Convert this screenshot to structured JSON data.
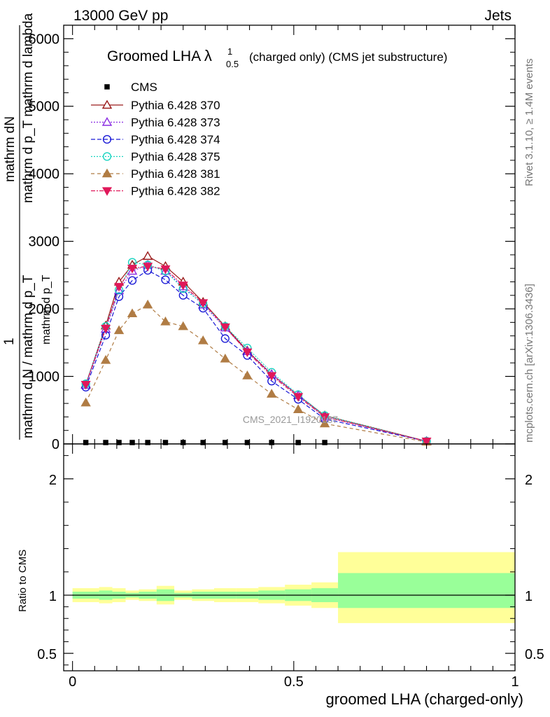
{
  "header": {
    "left": "13000 GeV pp",
    "right": "Jets"
  },
  "side_text": {
    "rivet": "Rivet 3.1.10, ≥ 1.4M events",
    "mcplots": "mcplots.cern.ch [arXiv:1306.3436]"
  },
  "watermark": "CMS_2021_I1920187",
  "colors": {
    "cms": "#000000",
    "p370": "#9b1b1b",
    "p373": "#8a2be2",
    "p374": "#1a1ad6",
    "p375": "#17d4c0",
    "p381": "#b07c44",
    "p382": "#e0185a",
    "band_outer": "#ffff99",
    "band_inner": "#99ff99"
  },
  "chart_data": [
    {
      "type": "line",
      "title_main": "Groomed LHA",
      "title_symbol": "λ",
      "title_sup": "1",
      "title_sub": "0.5",
      "title_rest": "(charged only) (CMS jet substructure)",
      "ylabel_top": "mathrm dN",
      "ylabel_mid": "mathrm d p_T mathrm d lambda",
      "ylabel_one": "1",
      "ylabel_den": "mathrm d N / mathrm d p_T",
      "ylabel_den2": "mathrm d p_T",
      "ylabel_den3": "mathrm d p_T mathrm d lambda",
      "ylim": [
        0,
        6200
      ],
      "xlim": [
        -0.02,
        1.0
      ],
      "yticks": [
        0,
        1000,
        2000,
        3000,
        4000,
        5000,
        6000
      ],
      "ytick_labels": [
        "0",
        "1000",
        "2000",
        "3000",
        "4000",
        "5000",
        "6000"
      ],
      "legend_position": "top-left",
      "cms": {
        "name": "CMS",
        "x": [
          0.03,
          0.075,
          0.105,
          0.135,
          0.17,
          0.21,
          0.25,
          0.295,
          0.345,
          0.395,
          0.45,
          0.51,
          0.57
        ],
        "y": [
          0,
          0,
          0,
          0,
          0,
          0,
          0,
          0,
          0,
          0,
          0,
          0,
          0
        ]
      },
      "series": [
        {
          "name": "Pythia 6.428 370",
          "key": "p370",
          "marker": "triangle-open",
          "dash": "",
          "x": [
            0.03,
            0.075,
            0.105,
            0.135,
            0.17,
            0.21,
            0.25,
            0.295,
            0.345,
            0.395,
            0.45,
            0.51,
            0.57,
            0.8
          ],
          "y": [
            880,
            1750,
            2400,
            2650,
            2780,
            2630,
            2400,
            2100,
            1740,
            1380,
            1030,
            720,
            420,
            40
          ]
        },
        {
          "name": "Pythia 6.428 373",
          "key": "p373",
          "marker": "triangle-open",
          "dash": "2,2",
          "x": [
            0.03,
            0.075,
            0.105,
            0.135,
            0.17,
            0.21,
            0.25,
            0.295,
            0.345,
            0.395,
            0.45,
            0.51,
            0.57,
            0.8
          ],
          "y": [
            870,
            1700,
            2270,
            2560,
            2650,
            2560,
            2330,
            2060,
            1720,
            1370,
            1030,
            720,
            400,
            40
          ]
        },
        {
          "name": "Pythia 6.428 374",
          "key": "p374",
          "marker": "circle-open",
          "dash": "6,3",
          "x": [
            0.03,
            0.075,
            0.105,
            0.135,
            0.17,
            0.21,
            0.25,
            0.295,
            0.345,
            0.395,
            0.45,
            0.51,
            0.57,
            0.8
          ],
          "y": [
            840,
            1610,
            2180,
            2420,
            2570,
            2430,
            2200,
            2010,
            1560,
            1310,
            930,
            660,
            370,
            40
          ]
        },
        {
          "name": "Pythia 6.428 375",
          "key": "p375",
          "marker": "circle-open",
          "dash": "2,2",
          "x": [
            0.03,
            0.075,
            0.105,
            0.135,
            0.17,
            0.21,
            0.25,
            0.295,
            0.345,
            0.395,
            0.45,
            0.51,
            0.57,
            0.8
          ],
          "y": [
            890,
            1740,
            2280,
            2690,
            2650,
            2560,
            2300,
            2080,
            1740,
            1420,
            1060,
            730,
            420,
            40
          ]
        },
        {
          "name": "Pythia 6.428 381",
          "key": "p381",
          "marker": "triangle-filled",
          "dash": "5,4",
          "x": [
            0.03,
            0.075,
            0.105,
            0.135,
            0.17,
            0.21,
            0.25,
            0.295,
            0.345,
            0.395,
            0.45,
            0.51,
            0.57,
            0.8
          ],
          "y": [
            610,
            1240,
            1680,
            1930,
            2060,
            1810,
            1740,
            1530,
            1260,
            1010,
            740,
            510,
            300,
            30
          ]
        },
        {
          "name": "Pythia 6.428 382",
          "key": "p382",
          "marker": "triangle-down-filled",
          "dash": "6,2,2,2",
          "x": [
            0.03,
            0.075,
            0.105,
            0.135,
            0.17,
            0.21,
            0.25,
            0.295,
            0.345,
            0.395,
            0.45,
            0.51,
            0.57,
            0.8
          ],
          "y": [
            880,
            1710,
            2330,
            2600,
            2630,
            2590,
            2350,
            2090,
            1730,
            1360,
            1010,
            700,
            400,
            40
          ]
        }
      ]
    },
    {
      "type": "area",
      "ylabel": "Ratio to CMS",
      "xlabel": "groomed LHA (charged-only)",
      "ylim": [
        0.35,
        2.3
      ],
      "xlim": [
        -0.02,
        1.0
      ],
      "yticks": [
        0.5,
        1,
        2
      ],
      "ytick_labels": [
        "0.5",
        "1",
        "2"
      ],
      "xticks": [
        0,
        0.5,
        1
      ],
      "xtick_labels": [
        "0",
        "0.5",
        "1"
      ],
      "bins": [
        {
          "x0": 0.0,
          "x1": 0.06,
          "inner": [
            0.97,
            1.03
          ],
          "outer": [
            0.94,
            1.06
          ]
        },
        {
          "x0": 0.06,
          "x1": 0.09,
          "inner": [
            0.96,
            1.04
          ],
          "outer": [
            0.93,
            1.07
          ]
        },
        {
          "x0": 0.09,
          "x1": 0.12,
          "inner": [
            0.97,
            1.03
          ],
          "outer": [
            0.94,
            1.06
          ]
        },
        {
          "x0": 0.12,
          "x1": 0.15,
          "inner": [
            0.98,
            1.02
          ],
          "outer": [
            0.96,
            1.04
          ]
        },
        {
          "x0": 0.15,
          "x1": 0.19,
          "inner": [
            0.97,
            1.03
          ],
          "outer": [
            0.95,
            1.05
          ]
        },
        {
          "x0": 0.19,
          "x1": 0.23,
          "inner": [
            0.95,
            1.05
          ],
          "outer": [
            0.92,
            1.08
          ]
        },
        {
          "x0": 0.23,
          "x1": 0.27,
          "inner": [
            0.98,
            1.02
          ],
          "outer": [
            0.96,
            1.04
          ]
        },
        {
          "x0": 0.27,
          "x1": 0.32,
          "inner": [
            0.97,
            1.03
          ],
          "outer": [
            0.95,
            1.05
          ]
        },
        {
          "x0": 0.32,
          "x1": 0.37,
          "inner": [
            0.97,
            1.03
          ],
          "outer": [
            0.94,
            1.06
          ]
        },
        {
          "x0": 0.37,
          "x1": 0.42,
          "inner": [
            0.97,
            1.03
          ],
          "outer": [
            0.94,
            1.06
          ]
        },
        {
          "x0": 0.42,
          "x1": 0.48,
          "inner": [
            0.96,
            1.04
          ],
          "outer": [
            0.93,
            1.07
          ]
        },
        {
          "x0": 0.48,
          "x1": 0.54,
          "inner": [
            0.95,
            1.05
          ],
          "outer": [
            0.91,
            1.09
          ]
        },
        {
          "x0": 0.54,
          "x1": 0.6,
          "inner": [
            0.94,
            1.06
          ],
          "outer": [
            0.89,
            1.11
          ]
        },
        {
          "x0": 0.6,
          "x1": 1.0,
          "inner": [
            0.89,
            1.19
          ],
          "outer": [
            0.76,
            1.37
          ]
        }
      ]
    }
  ]
}
